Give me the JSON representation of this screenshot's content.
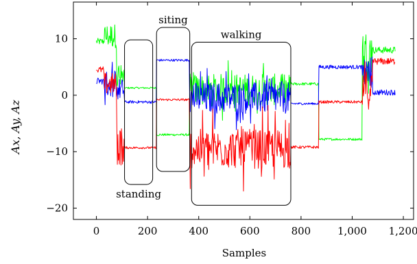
{
  "chart_data": {
    "type": "line",
    "title": "",
    "xlabel": "Samples",
    "ylabel": "A_x, A_y, A_z",
    "ylabel_display": "Ax, Ay, Az",
    "xlim": [
      -90,
      1240
    ],
    "ylim": [
      -22,
      16.5
    ],
    "x_ticks": [
      0,
      200,
      400,
      600,
      800,
      1000,
      1200
    ],
    "x_tick_labels": [
      "0",
      "200",
      "400",
      "600",
      "800",
      "1,000",
      "1,200"
    ],
    "y_ticks": [
      -20,
      -10,
      0,
      10
    ],
    "y_tick_labels": [
      "−20",
      "−10",
      "0",
      "10"
    ],
    "grid": false,
    "legend": "none",
    "series": [
      {
        "color": "#00ff00",
        "segments": [
          {
            "start": 0,
            "end": 30,
            "level": 9.5,
            "noise": 0.6
          },
          {
            "start": 30,
            "end": 80,
            "level": 10.5,
            "noise": 2.2
          },
          {
            "start": 80,
            "end": 110,
            "level": 3.0,
            "noise": 2.5
          },
          {
            "start": 110,
            "end": 235,
            "level": 1.3,
            "noise": 0.15
          },
          {
            "start": 235,
            "end": 365,
            "level": -7.0,
            "noise": 0.2
          },
          {
            "start": 365,
            "end": 760,
            "level": 1.0,
            "noise": 2.8
          },
          {
            "start": 760,
            "end": 870,
            "level": 2.0,
            "noise": 0.25
          },
          {
            "start": 870,
            "end": 1040,
            "level": -7.8,
            "noise": 0.2
          },
          {
            "start": 1040,
            "end": 1080,
            "level": 8.0,
            "noise": 3.5
          },
          {
            "start": 1080,
            "end": 1170,
            "level": 8.0,
            "noise": 0.6
          }
        ]
      },
      {
        "color": "#0000ff",
        "segments": [
          {
            "start": 0,
            "end": 30,
            "level": 2.5,
            "noise": 0.6
          },
          {
            "start": 30,
            "end": 80,
            "level": 2.0,
            "noise": 2.5
          },
          {
            "start": 80,
            "end": 110,
            "level": 1.0,
            "noise": 2.0
          },
          {
            "start": 110,
            "end": 235,
            "level": -1.2,
            "noise": 0.25
          },
          {
            "start": 235,
            "end": 365,
            "level": 6.2,
            "noise": 0.2
          },
          {
            "start": 365,
            "end": 760,
            "level": -0.5,
            "noise": 2.8
          },
          {
            "start": 760,
            "end": 870,
            "level": -1.5,
            "noise": 0.2
          },
          {
            "start": 870,
            "end": 1040,
            "level": 5.0,
            "noise": 0.35
          },
          {
            "start": 1040,
            "end": 1080,
            "level": 4.0,
            "noise": 3.0
          },
          {
            "start": 1080,
            "end": 1170,
            "level": 0.5,
            "noise": 0.5
          }
        ]
      },
      {
        "color": "#ff0000",
        "segments": [
          {
            "start": 0,
            "end": 30,
            "level": 4.5,
            "noise": 0.6
          },
          {
            "start": 30,
            "end": 80,
            "level": 2.0,
            "noise": 2.0
          },
          {
            "start": 80,
            "end": 110,
            "level": -9.0,
            "noise": 3.5
          },
          {
            "start": 110,
            "end": 235,
            "level": -9.3,
            "noise": 0.2
          },
          {
            "start": 235,
            "end": 365,
            "level": -0.8,
            "noise": 0.2
          },
          {
            "start": 365,
            "end": 760,
            "level": -9.5,
            "noise": 3.5
          },
          {
            "start": 760,
            "end": 870,
            "level": -9.2,
            "noise": 0.25
          },
          {
            "start": 870,
            "end": 1040,
            "level": -1.2,
            "noise": 0.25
          },
          {
            "start": 1040,
            "end": 1080,
            "level": 1.0,
            "noise": 3.5
          },
          {
            "start": 1080,
            "end": 1170,
            "level": 6.0,
            "noise": 0.6
          }
        ]
      }
    ],
    "annotations": [
      {
        "label": "standing",
        "x0": 110,
        "x1": 220,
        "y0": -15.8,
        "y1": 9.8,
        "label_pos": "below"
      },
      {
        "label": "siting",
        "x0": 235,
        "x1": 365,
        "y0": -13.5,
        "y1": 12.0,
        "label_pos": "above"
      },
      {
        "label": "walking",
        "x0": 372,
        "x1": 760,
        "y0": -19.5,
        "y1": 9.4,
        "label_pos": "above"
      }
    ]
  }
}
